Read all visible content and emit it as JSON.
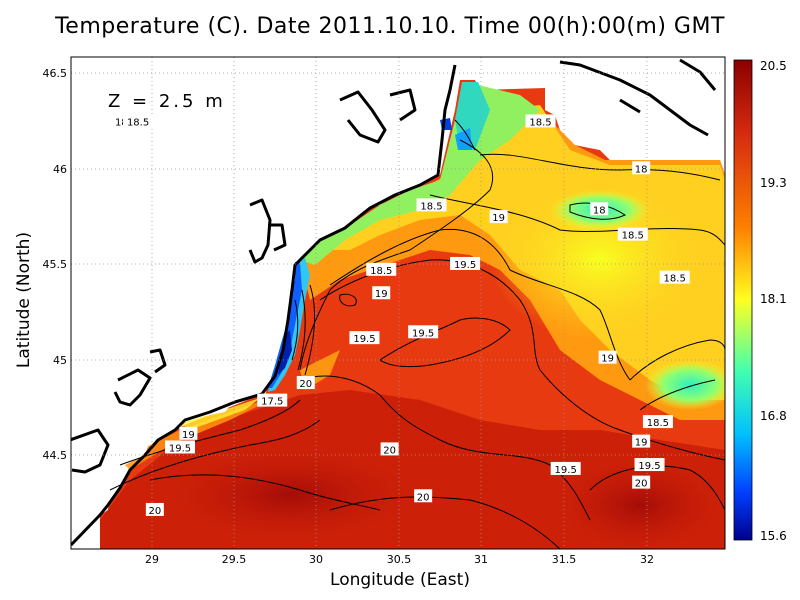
{
  "title": "Temperature (C). Date 2011.10.10. Time 00(h):00(m) GMT",
  "depth_label": "Z = 2.5 m",
  "axes": {
    "xlabel": "Longitude (East)",
    "ylabel": "Latitude (North)",
    "x_ticks": [
      "29",
      "29.5",
      "30",
      "30.5",
      "31",
      "31.5",
      "32"
    ],
    "y_ticks": [
      "44.5",
      "45",
      "45.5",
      "46",
      "46.5"
    ]
  },
  "colorbar": {
    "min": 15.6,
    "max": 20.5,
    "tick_labels": [
      "20.5",
      "19.3",
      "18.1",
      "16.8",
      "15.6"
    ],
    "colors": [
      "#8b0000",
      "#d42a10",
      "#ff8000",
      "#ffff20",
      "#40ffb0",
      "#00c0ff",
      "#0040ff",
      "#00008b"
    ]
  },
  "chart_data": {
    "type": "heatmap",
    "title": "Temperature (C). Date 2011.10.10. Time 00(h):00(m) GMT",
    "xlabel": "Longitude (East)",
    "ylabel": "Latitude (North)",
    "xlim": [
      28.55,
      32.45
    ],
    "ylim": [
      44.03,
      46.55
    ],
    "grid": true,
    "zlim": [
      15.6,
      20.5
    ],
    "contour_labels": [
      {
        "text": "18",
        "x": 28.85,
        "y": 46.22
      },
      {
        "text": "18.5",
        "x": 28.95,
        "y": 46.22
      },
      {
        "text": "18.5",
        "x": 31.35,
        "y": 46.22
      },
      {
        "text": "18",
        "x": 31.95,
        "y": 45.98
      },
      {
        "text": "18",
        "x": 31.7,
        "y": 45.77
      },
      {
        "text": "18.5",
        "x": 30.7,
        "y": 45.79
      },
      {
        "text": "19",
        "x": 31.1,
        "y": 45.73
      },
      {
        "text": "18.5",
        "x": 31.9,
        "y": 45.64
      },
      {
        "text": "18.5",
        "x": 30.4,
        "y": 45.46
      },
      {
        "text": "19.5",
        "x": 30.9,
        "y": 45.49
      },
      {
        "text": "18.5",
        "x": 32.15,
        "y": 45.42
      },
      {
        "text": "19",
        "x": 30.4,
        "y": 45.34
      },
      {
        "text": "19.5",
        "x": 30.65,
        "y": 45.14
      },
      {
        "text": "19.5",
        "x": 30.3,
        "y": 45.11
      },
      {
        "text": "19",
        "x": 31.75,
        "y": 45.01
      },
      {
        "text": "20",
        "x": 29.95,
        "y": 44.88
      },
      {
        "text": "17.5",
        "x": 29.75,
        "y": 44.79
      },
      {
        "text": "18.5",
        "x": 32.05,
        "y": 44.68
      },
      {
        "text": "19",
        "x": 29.25,
        "y": 44.62
      },
      {
        "text": "19.5",
        "x": 29.2,
        "y": 44.55
      },
      {
        "text": "19",
        "x": 31.95,
        "y": 44.58
      },
      {
        "text": "20",
        "x": 30.45,
        "y": 44.54
      },
      {
        "text": "19.5",
        "x": 32.0,
        "y": 44.46
      },
      {
        "text": "19.5",
        "x": 31.5,
        "y": 44.44
      },
      {
        "text": "20",
        "x": 31.95,
        "y": 44.37
      },
      {
        "text": "20",
        "x": 30.65,
        "y": 44.3
      },
      {
        "text": "20",
        "x": 29.05,
        "y": 44.23
      }
    ]
  }
}
